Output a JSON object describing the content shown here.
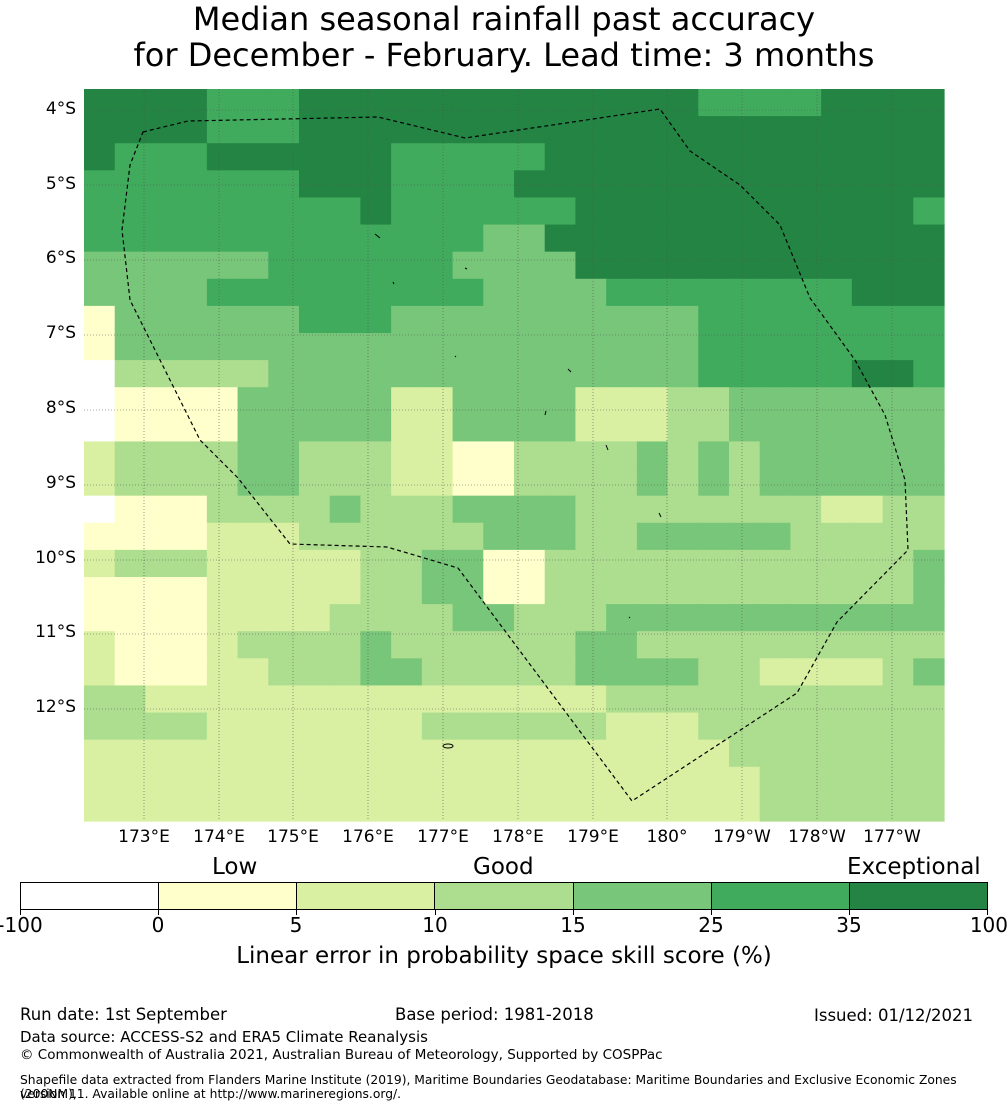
{
  "title": {
    "line1": "Median seasonal rainfall past accuracy",
    "line2": "for December - February. Lead time: 3 months"
  },
  "map": {
    "lat_labels": [
      "4°S",
      "5°S",
      "6°S",
      "7°S",
      "8°S",
      "9°S",
      "10°S",
      "11°S",
      "12°S"
    ],
    "lon_labels": [
      "173°E",
      "174°E",
      "175°E",
      "176°E",
      "177°E",
      "178°E",
      "179°E",
      "180°",
      "179°W",
      "178°W",
      "177°W"
    ],
    "boundary_style": "dashed",
    "grid_levels": [
      "6666555666666666666655556666",
      "6666555666666666666666666666",
      "6555666666555556666666666666",
      "5555555666555566666666666666",
      "5555555556555555666666666665",
      "5555555555555446666666666666",
      "4444445555554444666666666666",
      "4444555555555444455555555666",
      "1444444555444444444455555555",
      "1444444444444444444455555555",
      "0333334444444444444455555665",
      "0111144444224444222334444444",
      "0111144444224444222334444444",
      "2333344333221133334343444444",
      "2333344333221133334343444444",
      "0111333343334444333333332233",
      "1111222333333444334444433333",
      "2333222223344113333333333334",
      "1111222223344113333333333334",
      "1111222233334433344444444444",
      "2111233334333333443333333333",
      "2111223334433333444433222234",
      "3322222222222222233333333333",
      "3333222222233333322233333333",
      "2222222222222222222223333333",
      "2222222222222222222222333333",
      "2222222222222222222222333333"
    ]
  },
  "legend": {
    "categories": [
      "Low",
      "Good",
      "Exceptional"
    ],
    "ticks": [
      "-100",
      "0",
      "5",
      "10",
      "15",
      "25",
      "35",
      "100"
    ],
    "colors": [
      "#ffffff",
      "#ffffcc",
      "#d9f0a3",
      "#addd8e",
      "#78c679",
      "#41ab5d",
      "#238443"
    ],
    "axis_label": "Linear error in probability space skill score (%)"
  },
  "footer": {
    "run_date": "Run date: 1st September",
    "base_period": "Base period: 1981-2018",
    "issued": "Issued: 01/12/2021",
    "data_source": "Data source: ACCESS-S2 and ERA5 Climate Reanalysis",
    "copyright": "© Commonwealth of Australia 2021, Australian Bureau of Meteorology, Supported by COSPPac",
    "shapefile_line1": "Shapefile data extracted from Flanders Marine Institute (2019), Maritime Boundaries Geodatabase: Maritime Boundaries and Exclusive Economic Zones (200NM),",
    "shapefile_line2": "version 11. Available online at http://www.marineregions.org/."
  }
}
